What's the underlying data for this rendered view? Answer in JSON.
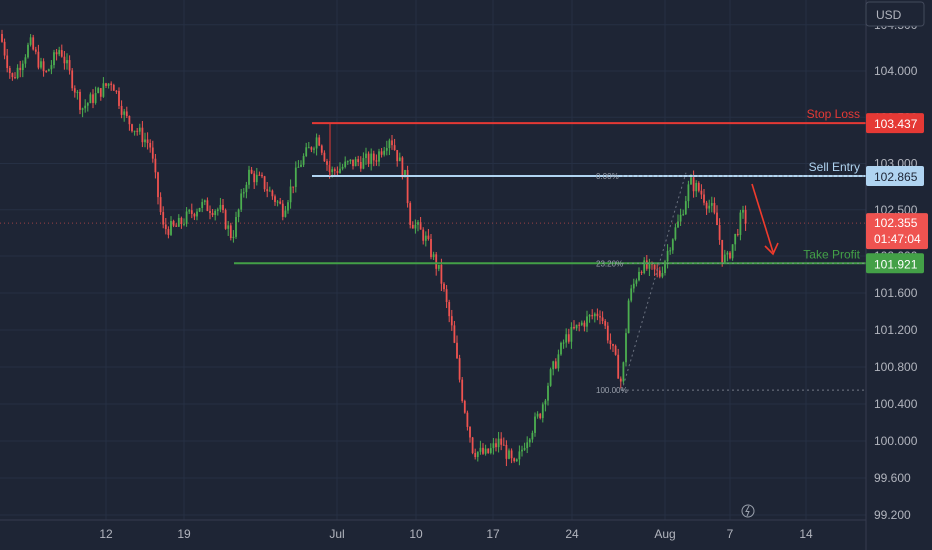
{
  "currency": "USD",
  "chart_data": {
    "type": "candlestick",
    "y_range": [
      99.2,
      104.95
    ],
    "y_ticks": [
      "99.200",
      "99.600",
      "100.000",
      "100.400",
      "100.800",
      "101.200",
      "101.600",
      "102.000",
      "102.500",
      "103.000",
      "103.500",
      "104.000",
      "104.500"
    ],
    "x_ticks": [
      "12",
      "19",
      "Jul",
      "10",
      "17",
      "24",
      "Aug",
      "7",
      "14"
    ],
    "levels": [
      {
        "name": "Stop Loss",
        "value": 103.437,
        "price_label": "103.437",
        "color": "#e53935"
      },
      {
        "name": "Sell Entry",
        "value": 102.865,
        "price_label": "102.865",
        "color": "#b0d4f1"
      },
      {
        "name": "Take Profit",
        "value": 101.921,
        "price_label": "101.921",
        "color": "#43a047"
      }
    ],
    "current_price": {
      "value": 102.355,
      "label": "102.355",
      "countdown": "01:47:04",
      "color": "#ef5350"
    },
    "fib_labels": [
      "0.00%",
      "23.20%",
      "100.00%"
    ],
    "colors": {
      "up": "#26a69a",
      "up_alt": "#4caf50",
      "down": "#ef5350",
      "background": "#1e2535"
    }
  }
}
